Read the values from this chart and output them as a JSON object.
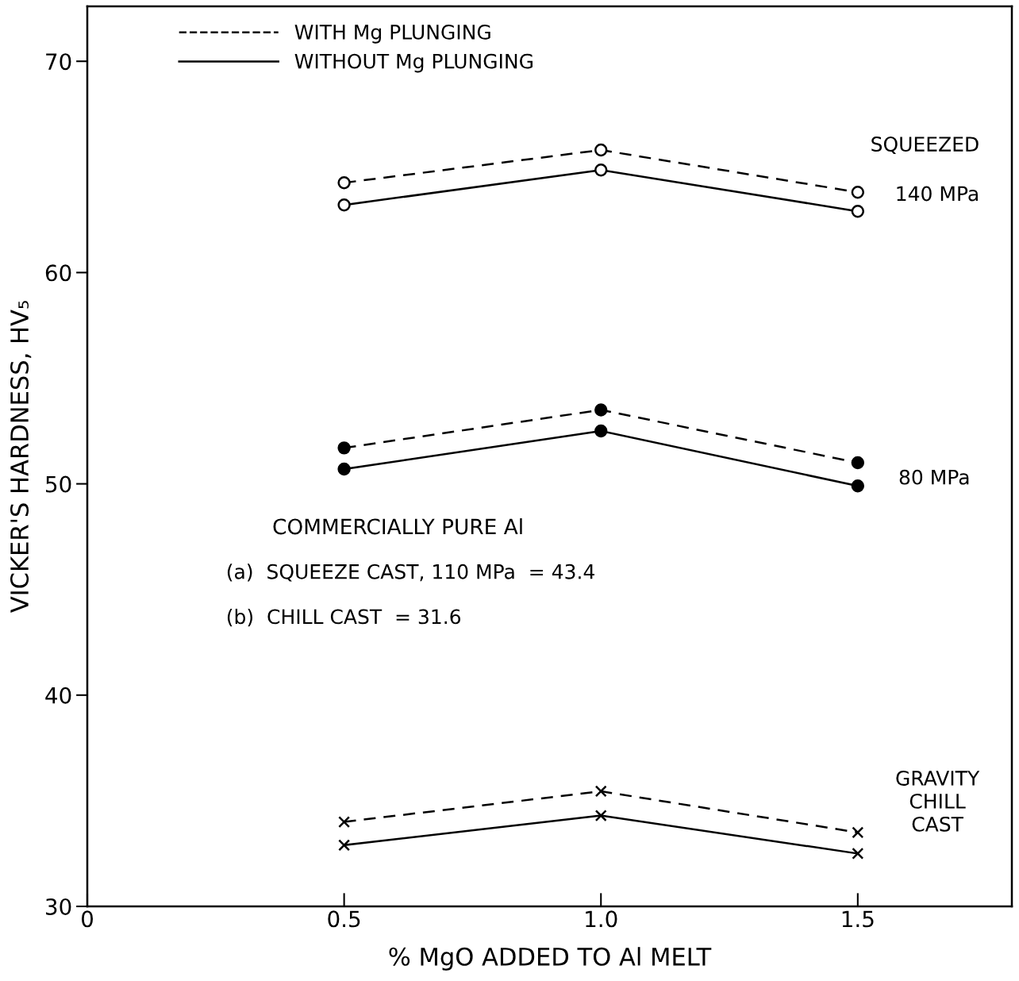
{
  "chart_data": {
    "type": "line",
    "xlabel": "% MgO ADDED TO Al MELT",
    "ylabel": "VICKER'S HARDNESS, HV₅",
    "xlim": [
      0,
      1.8
    ],
    "xticks": [
      0,
      {
        "value": 0.5,
        "label": "0.5"
      },
      {
        "value": 1.0,
        "label": "1.0"
      },
      {
        "value": 1.5,
        "label": "1.5"
      }
    ],
    "ylim": [
      30,
      72.6
    ],
    "yticks": [
      30,
      40,
      50,
      60,
      70
    ],
    "grid": false,
    "legend": "top left",
    "x": [
      0.5,
      1.0,
      1.5
    ],
    "series": [
      {
        "name": "WITH Mg PLUNGING",
        "color": "#000000",
        "line_style": "dashed",
        "marker": "circle",
        "values": [
          64.25,
          65.8,
          63.8
        ]
      },
      {
        "name": "WITHOUT Mg PLUNGING",
        "color": "#000000",
        "line_style": "solid",
        "marker": "circle",
        "values": [
          63.2,
          64.85,
          62.9
        ]
      },
      {
        "color": "#000000",
        "line_style": "dashed",
        "marker": "filled_circle",
        "values": [
          51.7,
          53.5,
          51.0
        ]
      },
      {
        "color": "#000000",
        "line_style": "solid",
        "marker": "filled_circle",
        "values": [
          50.7,
          52.5,
          49.9
        ]
      },
      {
        "color": "#000000",
        "line_style": "dashed",
        "marker": "cross",
        "values": [
          34.0,
          35.45,
          33.5
        ]
      },
      {
        "color": "#000000",
        "line_style": "solid",
        "marker": "cross",
        "values": [
          32.9,
          34.3,
          32.5
        ]
      }
    ],
    "annotations": [
      "SQUEEZED",
      "140 MPa",
      "80 MPa",
      "COMMERCIALLY PURE Al",
      "(a)  SQUEEZE CAST, 110 MPa  = 43.4",
      "(b)  CHILL CAST  = 31.6",
      "GRAVITY\nCHILL\nCAST"
    ]
  }
}
